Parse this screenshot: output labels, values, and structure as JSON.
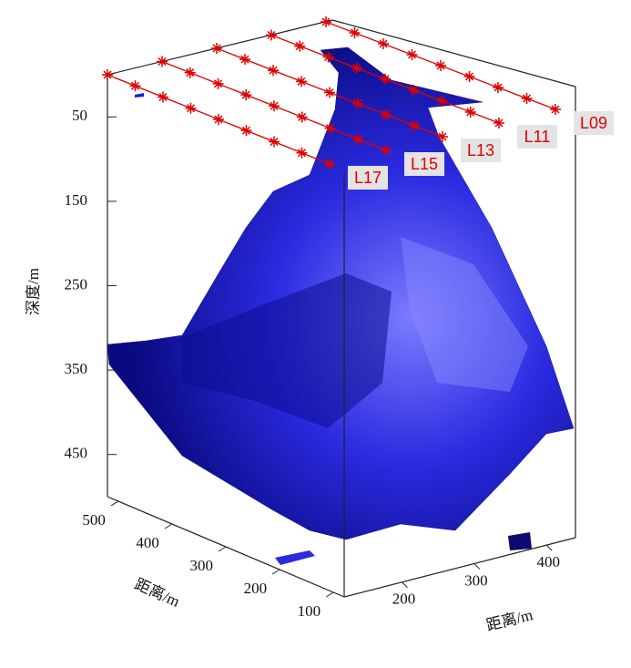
{
  "chart_data": {
    "type": "surface3d",
    "zlabel": "深度/m",
    "zlim": [
      0,
      500
    ],
    "zticks": [
      50,
      150,
      250,
      350,
      450
    ],
    "xlabel": "距离/m",
    "xlim": [
      520,
      80
    ],
    "xticks": [
      500,
      400,
      300,
      200,
      100
    ],
    "ylabel": "距离/m",
    "ylim": [
      120,
      440
    ],
    "yticks": [
      200,
      300,
      400
    ],
    "lines": [
      "L09",
      "L11",
      "L13",
      "L15",
      "L17"
    ],
    "line_color": "#e00000",
    "surface_color": "#1c1cd0"
  }
}
